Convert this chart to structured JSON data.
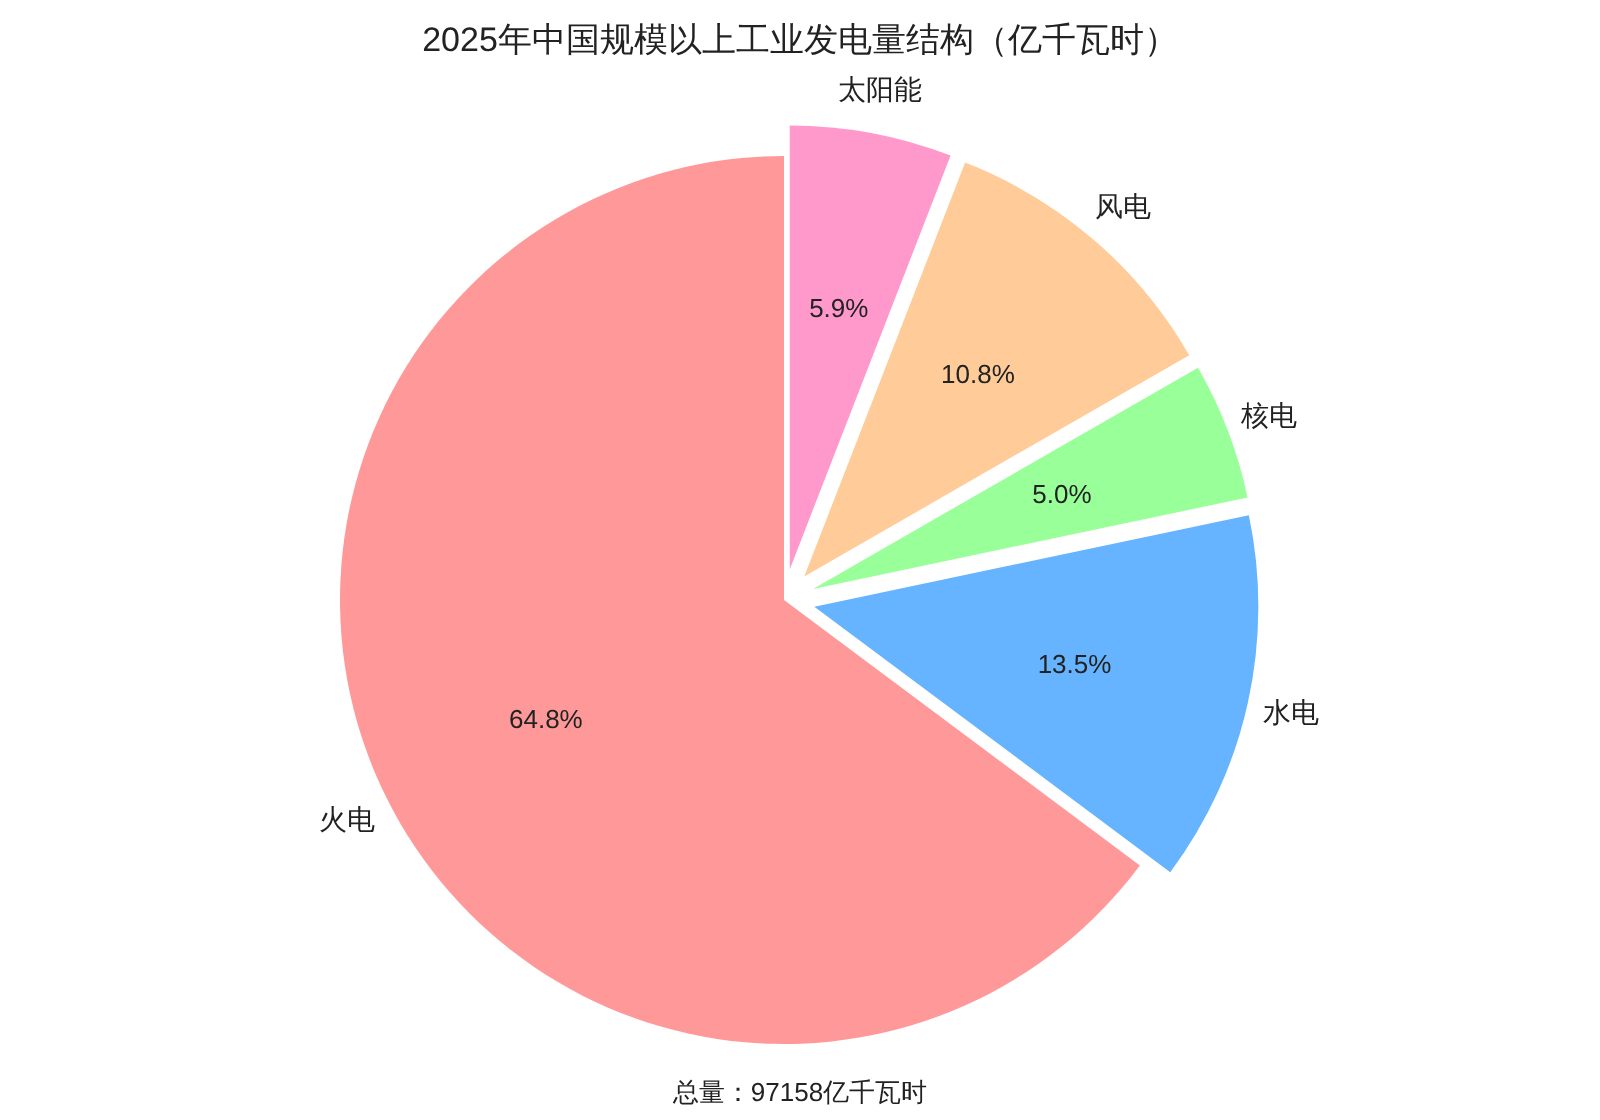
{
  "chart_data": {
    "type": "pie",
    "title": "2025年中国规模以上工业发电量结构（亿千瓦时）",
    "categories": [
      "火电",
      "水电",
      "核电",
      "风电",
      "太阳能"
    ],
    "values": [
      64.8,
      13.5,
      5.0,
      10.8,
      5.9
    ],
    "value_labels": [
      "64.8%",
      "13.5%",
      "5.0%",
      "10.8%",
      "5.9%"
    ],
    "colors": [
      "#ff9999",
      "#66b3ff",
      "#99ff99",
      "#ffcc99",
      "#ff99cc"
    ],
    "annotations": [
      "总量：97158亿千瓦时"
    ]
  }
}
